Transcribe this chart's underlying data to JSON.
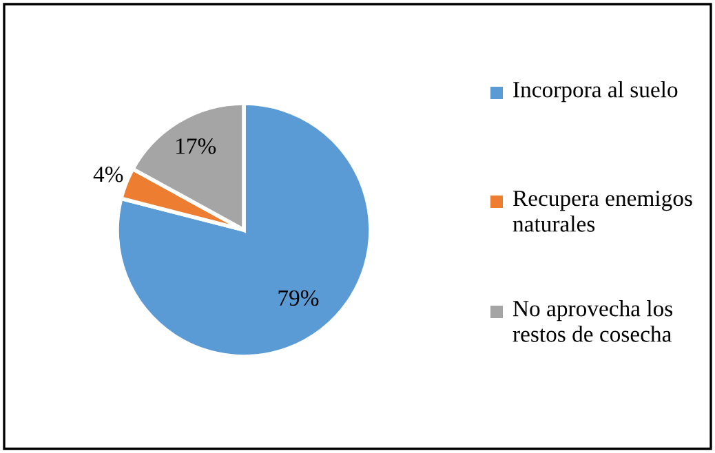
{
  "chart_data": {
    "type": "pie",
    "categories": [
      "Incorpora al suelo",
      "Recupera enemigos naturales",
      "No aprovecha los restos de cosecha"
    ],
    "values": [
      79,
      4,
      17
    ],
    "colors": [
      "#5b9bd5",
      "#ed7d31",
      "#a5a5a5"
    ],
    "value_labels": [
      "79%",
      "4%",
      "17%"
    ],
    "legend": "right"
  }
}
